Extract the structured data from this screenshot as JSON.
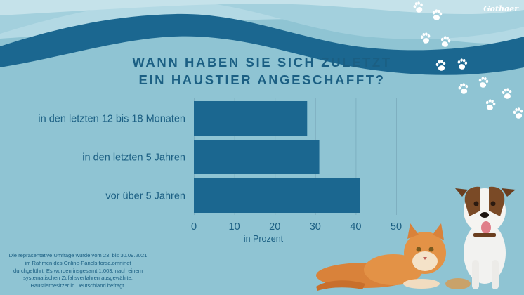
{
  "brand": "Gothaer",
  "title_lines": [
    "WANN HABEN SIE SICH ZULETZT",
    "EIN HAUSTIER ANGESCHAFFT?"
  ],
  "footnote_lines": [
    "Die repräsentative Umfrage wurde vom 23. bis 30.09.2021",
    "im Rahmen des Online-Panels forsa.omninet",
    "durchgeführt. Es wurden insgesamt 1.003, nach einem",
    "systematischen Zufallsverfahren ausgewählte,",
    "Haustierbesitzer in Deutschland befragt."
  ],
  "colors": {
    "background": "#8fc4d3",
    "bar": "#1b6790",
    "wave_dark": "#1b6790",
    "text": "#1b5f83"
  },
  "decorations": [
    "paw-print-icons",
    "cat-illustration",
    "dog-illustration"
  ],
  "chart_data": {
    "type": "bar",
    "orientation": "horizontal",
    "categories": [
      "in den letzten 12 bis 18 Monaten",
      "in den letzten 5 Jahren",
      "vor über 5 Jahren"
    ],
    "values": [
      28,
      31,
      41
    ],
    "xlabel": "in Prozent",
    "xlim": [
      0,
      50
    ],
    "xticks": [
      0,
      10,
      20,
      30,
      40,
      50
    ],
    "grid": true
  }
}
